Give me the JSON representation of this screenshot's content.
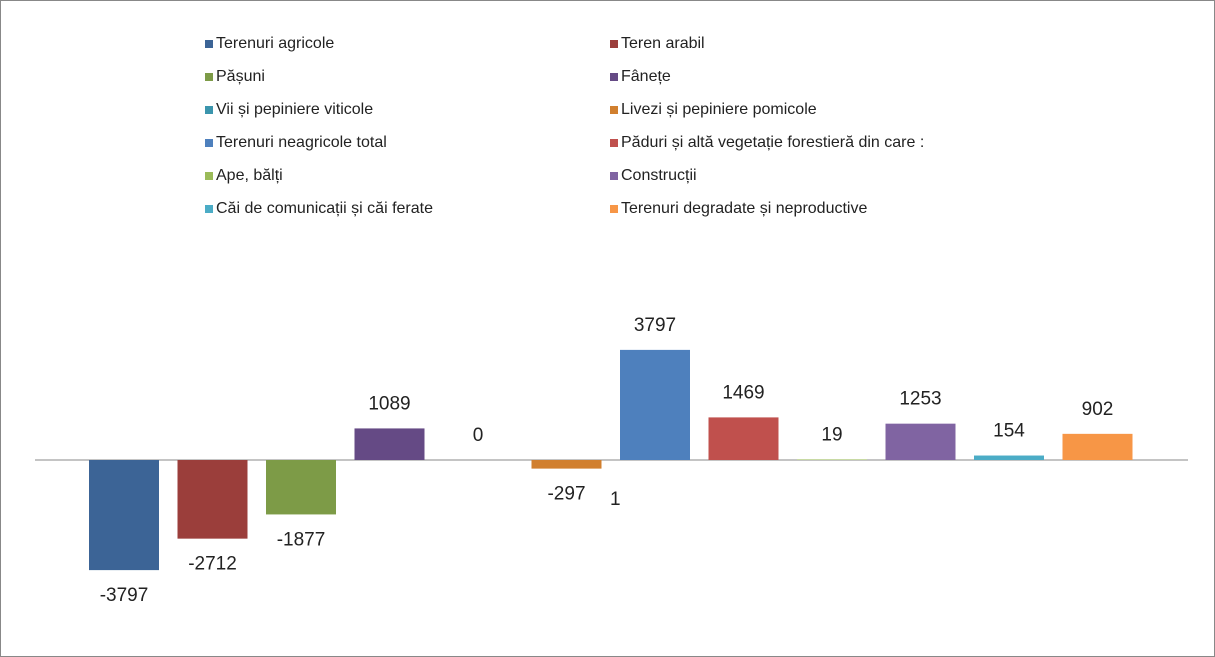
{
  "chart_data": {
    "type": "bar",
    "series": [
      {
        "name": "Terenuri agricole",
        "color": "#3c6496",
        "values": [
          -3797
        ]
      },
      {
        "name": "Teren arabil",
        "color": "#9b3e3b",
        "values": [
          -2712
        ]
      },
      {
        "name": "Pășuni",
        "color": "#7d9b47",
        "values": [
          -1877
        ]
      },
      {
        "name": "Fânețe",
        "color": "#654a85",
        "values": [
          1089
        ]
      },
      {
        "name": "Vii și pepiniere viticole",
        "color": "#3b95ad",
        "values": [
          0
        ]
      },
      {
        "name": "Livezi și pepiniere pomicole",
        "color": "#d17f2e",
        "values": [
          -297
        ]
      },
      {
        "name": "Terenuri neagricole total",
        "color": "#4e80bd",
        "values": [
          3797
        ]
      },
      {
        "name": "Păduri și altă vegetație forestieră din care :",
        "color": "#c0504d",
        "values": [
          1469
        ]
      },
      {
        "name": "Ape, bălți",
        "color": "#9bbb59",
        "values": [
          19
        ]
      },
      {
        "name": "Construcții",
        "color": "#8064a2",
        "values": [
          1253
        ]
      },
      {
        "name": "Căi de comunicații și căi ferate",
        "color": "#4bacc6",
        "values": [
          154
        ]
      },
      {
        "name": "Terenuri degradate și neproductive",
        "color": "#f79646",
        "values": [
          902
        ]
      }
    ],
    "annotations": [
      "1"
    ],
    "ylim": [
      -6000,
      6000
    ]
  }
}
